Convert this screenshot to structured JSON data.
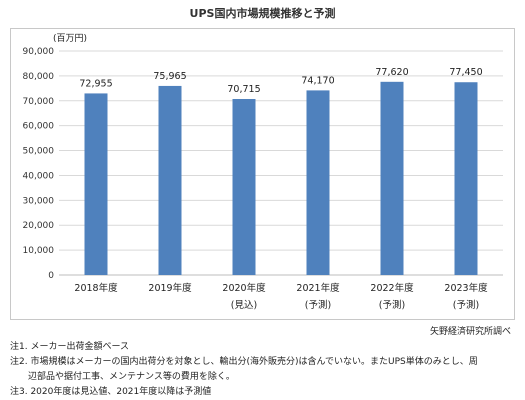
{
  "chart_data": {
    "type": "bar",
    "title": "UPS国内市場規模推移と予測",
    "ylabel": "(百万円)",
    "xlabel": "",
    "ylim": [
      0,
      90000
    ],
    "yticks": [
      0,
      10000,
      20000,
      30000,
      40000,
      50000,
      60000,
      70000,
      80000,
      90000
    ],
    "ytick_labels": [
      "0",
      "10,000",
      "20,000",
      "30,000",
      "40,000",
      "50,000",
      "60,000",
      "70,000",
      "80,000",
      "90,000"
    ],
    "grid": true,
    "legend": "none",
    "bar_color": "#4f81bd",
    "categories": [
      {
        "label": "2018年度",
        "sub": ""
      },
      {
        "label": "2019年度",
        "sub": ""
      },
      {
        "label": "2020年度",
        "sub": "(見込)"
      },
      {
        "label": "2021年度",
        "sub": "(予測)"
      },
      {
        "label": "2022年度",
        "sub": "(予測)"
      },
      {
        "label": "2023年度",
        "sub": "(予測)"
      }
    ],
    "values": [
      72955,
      75965,
      70715,
      74170,
      77620,
      77450
    ],
    "value_labels": [
      "72,955",
      "75,965",
      "70,715",
      "74,170",
      "77,620",
      "77,450"
    ]
  },
  "source": "矢野経済研究所調べ",
  "notes": {
    "note1": "注1. メーカー出荷金額ベース",
    "note2a": "注2. 市場規模はメーカーの国内出荷分を対象とし、輸出分(海外販売分)は含んでいない。またUPS単体のみとし、周",
    "note2b": "辺部品や据付工事、メンテナンス等の費用を除く。",
    "note3": "注3. 2020年度は見込値、2021年度以降は予測値"
  }
}
